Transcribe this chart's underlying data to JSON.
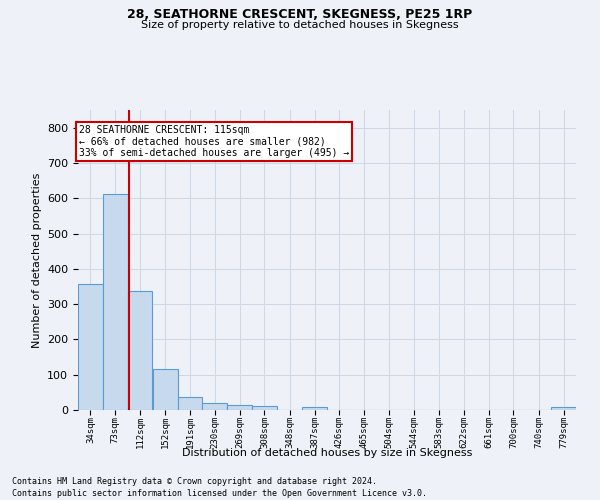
{
  "title1": "28, SEATHORNE CRESCENT, SKEGNESS, PE25 1RP",
  "title2": "Size of property relative to detached houses in Skegness",
  "xlabel": "Distribution of detached houses by size in Skegness",
  "ylabel": "Number of detached properties",
  "footer1": "Contains HM Land Registry data © Crown copyright and database right 2024.",
  "footer2": "Contains public sector information licensed under the Open Government Licence v3.0.",
  "bin_edges": [
    34,
    73,
    112,
    152,
    191,
    230,
    269,
    308,
    348,
    387,
    426,
    465,
    504,
    544,
    583,
    622,
    661,
    700,
    740,
    779,
    818
  ],
  "bar_heights": [
    358,
    612,
    336,
    115,
    36,
    21,
    15,
    10,
    0,
    9,
    0,
    0,
    0,
    0,
    0,
    0,
    0,
    0,
    0,
    8
  ],
  "bar_color": "#c7d9ed",
  "bar_edge_color": "#5b9bd5",
  "grid_color": "#d0d8e8",
  "vline_x": 115,
  "vline_color": "#cc0000",
  "annotation_line1": "28 SEATHORNE CRESCENT: 115sqm",
  "annotation_line2": "← 66% of detached houses are smaller (982)",
  "annotation_line3": "33% of semi-detached houses are larger (495) →",
  "annotation_box_color": "white",
  "annotation_box_edge": "#cc0000",
  "ylim": [
    0,
    850
  ],
  "yticks": [
    0,
    100,
    200,
    300,
    400,
    500,
    600,
    700,
    800
  ],
  "background_color": "#eef2f8"
}
